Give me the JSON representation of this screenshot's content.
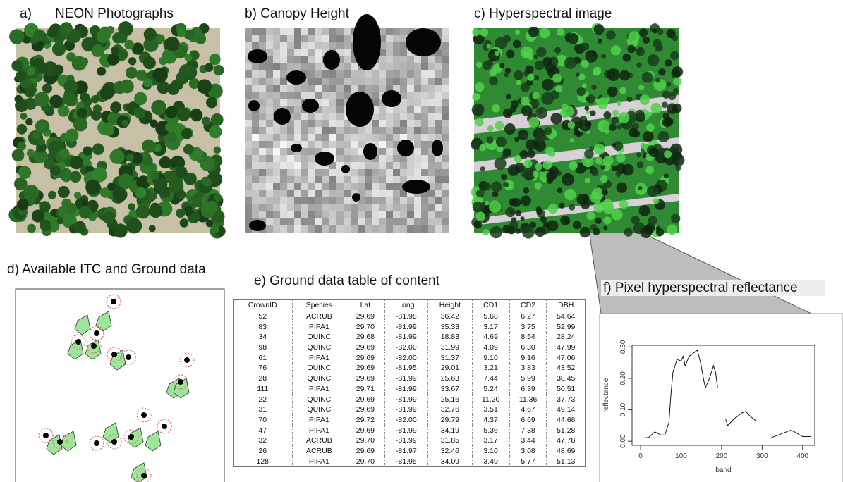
{
  "titles": {
    "a_label": "a)",
    "a": "NEON Photographs",
    "b": "b) Canopy Height",
    "c": "c) Hyperspectral image",
    "d": "d) Available ITC and Ground data",
    "e": "e) Ground data table of content",
    "f": "f) Pixel hyperspectral reflectance"
  },
  "table": {
    "columns": [
      "CrownID",
      "Species",
      "Lat",
      "Long",
      "Height",
      "CD1",
      "CD2",
      "DBH"
    ],
    "rows": [
      [
        "52",
        "ACRUB",
        "29.69",
        "-81.98",
        "36.42",
        "5.68",
        "6.27",
        "54.64"
      ],
      [
        "83",
        "PIPA1",
        "29.70",
        "-81.99",
        "35.33",
        "3.17",
        "3.75",
        "52.99"
      ],
      [
        "34",
        "QUINC",
        "29.68",
        "-81.99",
        "18.83",
        "4.69",
        "8.54",
        "28.24"
      ],
      [
        "98",
        "QUINC",
        "29.69",
        "-82.00",
        "31.99",
        "4.09",
        "6.30",
        "47.99"
      ],
      [
        "61",
        "PIPA1",
        "29.69",
        "-82.00",
        "31.37",
        "9.10",
        "9.16",
        "47.06"
      ],
      [
        "76",
        "QUINC",
        "29.69",
        "-81.95",
        "29.01",
        "3.21",
        "3.83",
        "43.52"
      ],
      [
        "28",
        "QUINC",
        "29.69",
        "-81.99",
        "25.63",
        "7.44",
        "5.99",
        "38.45"
      ],
      [
        "111",
        "PIPA1",
        "29.71",
        "-81.99",
        "33.67",
        "5.24",
        "6.39",
        "50.51"
      ],
      [
        "22",
        "QUINC",
        "29.69",
        "-81.99",
        "25.16",
        "11.20",
        "11.36",
        "37.73"
      ],
      [
        "31",
        "QUINC",
        "29.69",
        "-81.99",
        "32.76",
        "3.51",
        "4.67",
        "49.14"
      ],
      [
        "70",
        "PIPA1",
        "29.72",
        "-82.00",
        "29.79",
        "4.37",
        "6.69",
        "44.68"
      ],
      [
        "47",
        "PIPA1",
        "29.69",
        "-81.99",
        "34.19",
        "5.36",
        "7.38",
        "51.28"
      ],
      [
        "32",
        "ACRUB",
        "29.70",
        "-81.99",
        "31.85",
        "3.17",
        "3.44",
        "47.78"
      ],
      [
        "26",
        "ACRUB",
        "29.69",
        "-81.97",
        "32.46",
        "3.10",
        "3.08",
        "48.69"
      ],
      [
        "128",
        "PIPA1",
        "29.70",
        "-81.95",
        "34.09",
        "3.49",
        "5.77",
        "51.13"
      ]
    ]
  },
  "chart_data": {
    "type": "line",
    "xlabel": "band",
    "ylabel": "reflectance",
    "color": "#111111",
    "x": [
      5,
      20,
      35,
      50,
      60,
      70,
      75,
      80,
      90,
      100,
      105,
      110,
      120,
      130,
      140,
      148,
      155,
      160,
      170,
      180,
      185,
      190,
      200,
      210,
      215,
      230,
      250,
      260,
      270,
      285,
      300,
      320,
      340,
      360,
      370,
      380,
      400,
      420
    ],
    "values": [
      0.01,
      0.012,
      0.03,
      0.02,
      0.02,
      0.06,
      0.15,
      0.22,
      0.26,
      0.255,
      0.27,
      0.24,
      0.27,
      0.28,
      0.29,
      0.25,
      0.2,
      0.17,
      0.2,
      0.24,
      0.22,
      0.17,
      null,
      0.07,
      0.05,
      0.07,
      0.09,
      0.095,
      0.08,
      0.065,
      null,
      0.01,
      0.02,
      0.03,
      0.035,
      0.03,
      0.015,
      0.015
    ],
    "xlim": [
      -21,
      430
    ],
    "ylim": [
      -0.013,
      0.305
    ],
    "xticks": [
      0,
      100,
      200,
      300,
      400
    ],
    "yticks": [
      {
        "value": 0,
        "label": "0.00"
      },
      {
        "value": 0.1,
        "label": "0.10"
      },
      {
        "value": 0.2,
        "label": "0.20"
      },
      {
        "value": 0.3,
        "label": "0.30"
      }
    ]
  }
}
